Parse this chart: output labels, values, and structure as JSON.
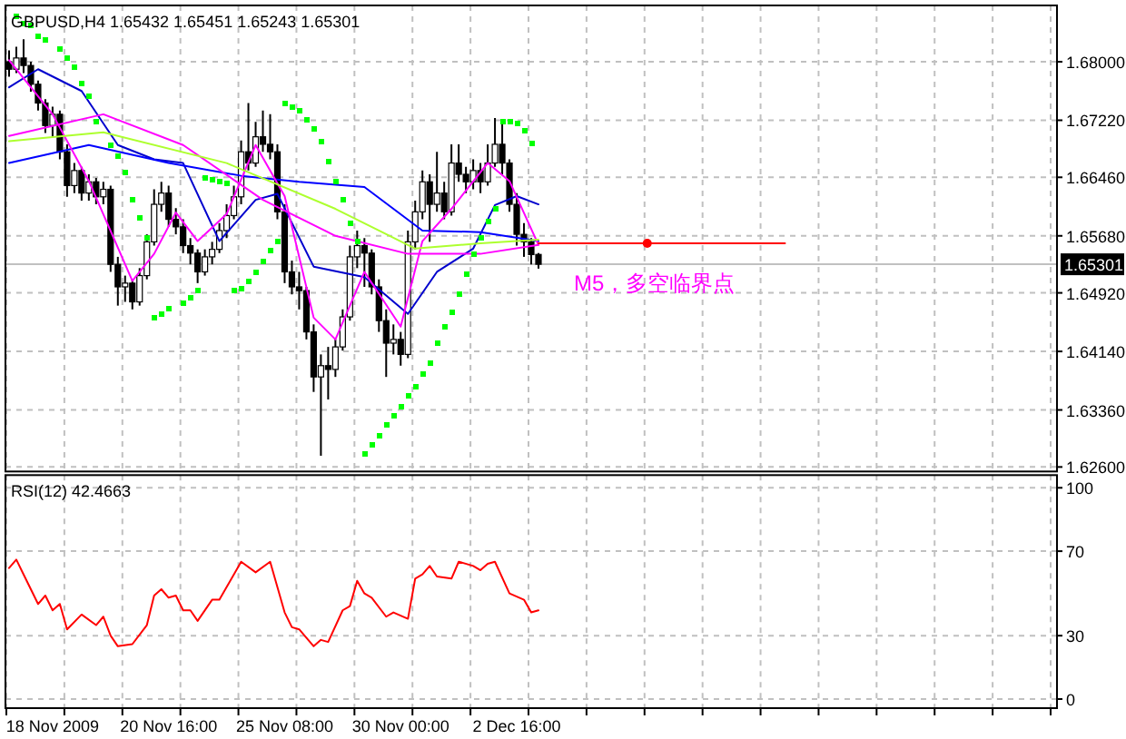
{
  "chart_data": [
    {
      "type": "candlestick",
      "title": "GBPUSD,H4  1.65432 1.65451 1.65243 1.65301",
      "categories": [
        null,
        null,
        null,
        null,
        null,
        null,
        null,
        null,
        null,
        null,
        null,
        null,
        null,
        null,
        null,
        null,
        null,
        null,
        null,
        null,
        null,
        null,
        null,
        null,
        null,
        null,
        null,
        null,
        null,
        null,
        null,
        null,
        null,
        null,
        null,
        null,
        null,
        null,
        null,
        null,
        null,
        null,
        null,
        null,
        null,
        null,
        null,
        null,
        null,
        null,
        null,
        null,
        null,
        null,
        null,
        null,
        null,
        null,
        null,
        null,
        null,
        null,
        null,
        null,
        null,
        null,
        null,
        null,
        null,
        null,
        null,
        null,
        null,
        null,
        null,
        null,
        null,
        null,
        null,
        null,
        null,
        null,
        null,
        null,
        null,
        null,
        null,
        null,
        null,
        null,
        null,
        null,
        null,
        null,
        null,
        null,
        null,
        null,
        null,
        null,
        null,
        null,
        null,
        null,
        null,
        null,
        null,
        null,
        null,
        null,
        null,
        null,
        null,
        null,
        null,
        null,
        null,
        null,
        null,
        null,
        null,
        null,
        null,
        null,
        null,
        null,
        null,
        null,
        null,
        null,
        null,
        null,
        null,
        null,
        null,
        null,
        null,
        null,
        null,
        null,
        null,
        null,
        null,
        null,
        null
      ],
      "ylim": [
        1.6254,
        1.6875
      ],
      "yticks": [
        {
          "value": 1.626,
          "label": "1.62600"
        },
        {
          "value": 1.6336,
          "label": "1.63360"
        },
        {
          "value": 1.6414,
          "label": "1.64140"
        },
        {
          "value": 1.6492,
          "label": "1.64920"
        },
        {
          "value": 1.6568,
          "label": "1.65680"
        },
        {
          "value": 1.6646,
          "label": "1.66460"
        },
        {
          "value": 1.6722,
          "label": "1.67220"
        },
        {
          "value": 1.68,
          "label": "1.68000"
        }
      ],
      "grid": true,
      "tick_labels": "y",
      "ohlc": [
        [
          1.68,
          1.6815,
          1.678,
          1.679
        ],
        [
          1.679,
          1.682,
          1.6785,
          1.6805
        ],
        [
          1.6805,
          1.683,
          1.6785,
          1.6795
        ],
        [
          1.6795,
          1.68,
          1.676,
          1.677
        ],
        [
          1.677,
          1.6775,
          1.6735,
          1.6745
        ],
        [
          1.6745,
          1.675,
          1.6705,
          1.6715
        ],
        [
          1.6715,
          1.674,
          1.67,
          1.673
        ],
        [
          1.673,
          1.6735,
          1.667,
          1.668
        ],
        [
          1.668,
          1.669,
          1.662,
          1.6635
        ],
        [
          1.6635,
          1.6665,
          1.6625,
          1.6655
        ],
        [
          1.6655,
          1.666,
          1.6615,
          1.6625
        ],
        [
          1.6625,
          1.665,
          1.6615,
          1.664
        ],
        [
          1.664,
          1.6645,
          1.661,
          1.662
        ],
        [
          1.662,
          1.664,
          1.661,
          1.663
        ],
        [
          1.663,
          1.6635,
          1.652,
          1.653
        ],
        [
          1.653,
          1.654,
          1.6475,
          1.65
        ],
        [
          1.65,
          1.6515,
          1.648,
          1.6505
        ],
        [
          1.6505,
          1.651,
          1.647,
          1.648
        ],
        [
          1.648,
          1.6525,
          1.6475,
          1.6515
        ],
        [
          1.6515,
          1.657,
          1.651,
          1.656
        ],
        [
          1.656,
          1.663,
          1.6555,
          1.661
        ],
        [
          1.661,
          1.664,
          1.66,
          1.6625
        ],
        [
          1.6625,
          1.6635,
          1.658,
          1.659
        ],
        [
          1.659,
          1.6605,
          1.657,
          1.658
        ],
        [
          1.658,
          1.659,
          1.6545,
          1.6555
        ],
        [
          1.6555,
          1.6565,
          1.653,
          1.6545
        ],
        [
          1.6545,
          1.655,
          1.6505,
          1.652
        ],
        [
          1.652,
          1.655,
          1.6515,
          1.654
        ],
        [
          1.654,
          1.656,
          1.653,
          1.655
        ],
        [
          1.655,
          1.6585,
          1.6545,
          1.6575
        ],
        [
          1.6575,
          1.661,
          1.6565,
          1.6595
        ],
        [
          1.6595,
          1.6635,
          1.659,
          1.662
        ],
        [
          1.662,
          1.6695,
          1.661,
          1.668
        ],
        [
          1.668,
          1.6745,
          1.6655,
          1.6665
        ],
        [
          1.6665,
          1.672,
          1.666,
          1.67
        ],
        [
          1.67,
          1.6735,
          1.668,
          1.669
        ],
        [
          1.669,
          1.673,
          1.667,
          1.668
        ],
        [
          1.668,
          1.669,
          1.659,
          1.66
        ],
        [
          1.66,
          1.661,
          1.6505,
          1.652
        ],
        [
          1.652,
          1.6535,
          1.649,
          1.65
        ],
        [
          1.65,
          1.652,
          1.647,
          1.6495
        ],
        [
          1.6495,
          1.65,
          1.643,
          1.644
        ],
        [
          1.644,
          1.645,
          1.636,
          1.638
        ],
        [
          1.638,
          1.641,
          1.6275,
          1.6395
        ],
        [
          1.6395,
          1.642,
          1.635,
          1.639
        ],
        [
          1.639,
          1.643,
          1.638,
          1.642
        ],
        [
          1.642,
          1.647,
          1.6415,
          1.646
        ],
        [
          1.646,
          1.6555,
          1.6455,
          1.654
        ],
        [
          1.654,
          1.6575,
          1.6525,
          1.6555
        ],
        [
          1.6555,
          1.6565,
          1.65,
          1.6545
        ],
        [
          1.6545,
          1.655,
          1.649,
          1.65
        ],
        [
          1.65,
          1.651,
          1.644,
          1.6455
        ],
        [
          1.6455,
          1.647,
          1.638,
          1.6425
        ],
        [
          1.6425,
          1.645,
          1.641,
          1.643
        ],
        [
          1.643,
          1.644,
          1.6395,
          1.641
        ],
        [
          1.641,
          1.6575,
          1.6405,
          1.656
        ],
        [
          1.656,
          1.6615,
          1.655,
          1.66
        ],
        [
          1.66,
          1.6655,
          1.659,
          1.664
        ],
        [
          1.664,
          1.665,
          1.656,
          1.661
        ],
        [
          1.661,
          1.668,
          1.66,
          1.6625
        ],
        [
          1.6625,
          1.664,
          1.659,
          1.66
        ],
        [
          1.66,
          1.669,
          1.6595,
          1.6665
        ],
        [
          1.6665,
          1.669,
          1.664,
          1.665
        ],
        [
          1.665,
          1.666,
          1.6625,
          1.664
        ],
        [
          1.664,
          1.667,
          1.663,
          1.6655
        ],
        [
          1.6655,
          1.6665,
          1.6625,
          1.664
        ],
        [
          1.664,
          1.669,
          1.6635,
          1.6665
        ],
        [
          1.6665,
          1.6725,
          1.666,
          1.669
        ],
        [
          1.669,
          1.672,
          1.665,
          1.6665
        ],
        [
          1.6665,
          1.667,
          1.66,
          1.661
        ],
        [
          1.661,
          1.6625,
          1.6555,
          1.657
        ],
        [
          1.657,
          1.6585,
          1.654,
          1.656
        ],
        [
          1.656,
          1.6565,
          1.653,
          1.6543
        ],
        [
          1.65432,
          1.65451,
          1.65243,
          1.65301
        ],
        null,
        null,
        null,
        null,
        null,
        null,
        null,
        null,
        null,
        null,
        null,
        null,
        null,
        null,
        null,
        null,
        null,
        null,
        null,
        null,
        null,
        null,
        null,
        null,
        null,
        null,
        null,
        null,
        null,
        null,
        null,
        null,
        null,
        null,
        null,
        null,
        null,
        null,
        null,
        null,
        null,
        null,
        null,
        null,
        null,
        null,
        null,
        null,
        null,
        null,
        null,
        null,
        null,
        null,
        null,
        null,
        null,
        null,
        null,
        null,
        null,
        null,
        null,
        null,
        null,
        null,
        null,
        null,
        null,
        null,
        null
      ],
      "series": [
        {
          "type": "line",
          "color": "#0000cd",
          "values": [
            1.6766,
            null,
            null,
            null,
            1.679,
            null,
            null,
            null,
            null,
            null,
            1.6761,
            null,
            null,
            null,
            null,
            1.6689,
            null,
            null,
            null,
            null,
            1.667,
            null,
            null,
            null,
            1.6665,
            null,
            null,
            null,
            null,
            1.6561,
            null,
            null,
            null,
            null,
            1.6616,
            null,
            null,
            1.6624,
            null,
            null,
            null,
            null,
            1.6527,
            null,
            null,
            null,
            null,
            null,
            null,
            1.6513,
            null,
            null,
            null,
            null,
            null,
            1.6464,
            null,
            null,
            null,
            1.652,
            null,
            null,
            null,
            null,
            1.6551,
            null,
            null,
            1.6609,
            null,
            null,
            1.6621,
            null,
            null,
            1.661,
            null,
            null,
            null,
            null,
            null,
            null,
            null,
            null,
            null,
            null,
            null,
            null,
            null,
            null,
            null,
            null,
            null,
            null,
            null,
            null,
            null,
            null,
            null,
            null,
            null,
            null,
            null,
            null,
            null,
            null,
            null,
            null,
            null,
            null,
            null,
            null,
            null,
            null,
            null,
            null,
            null,
            null,
            null,
            null,
            null,
            null,
            null,
            null,
            null,
            null,
            null,
            null,
            null,
            null,
            null,
            null,
            null,
            null,
            null,
            null,
            null,
            null,
            null,
            null,
            null,
            null,
            null,
            null,
            null,
            null,
            null
          ]
        },
        {
          "type": "line",
          "color": "#0000ff",
          "values": [
            1.6665,
            null,
            null,
            null,
            null,
            null,
            null,
            null,
            null,
            null,
            null,
            1.6689,
            null,
            null,
            null,
            null,
            null,
            null,
            null,
            null,
            null,
            null,
            1.6665,
            null,
            null,
            null,
            null,
            null,
            null,
            null,
            null,
            null,
            1.6648,
            null,
            null,
            null,
            null,
            null,
            null,
            null,
            1.664,
            null,
            null,
            null,
            null,
            null,
            null,
            null,
            null,
            1.6633,
            null,
            null,
            null,
            null,
            null,
            null,
            null,
            1.6575,
            null,
            null,
            null,
            null,
            null,
            null,
            null,
            1.6573,
            null,
            null,
            null,
            null,
            null,
            null,
            null,
            1.6561,
            null,
            null,
            null,
            null,
            null,
            null,
            null,
            null,
            null,
            null,
            null,
            null,
            null,
            null,
            null,
            null,
            null,
            null,
            null,
            null,
            null,
            null,
            null,
            null,
            null,
            null,
            null,
            null,
            null,
            null,
            null,
            null,
            null,
            null,
            null,
            null,
            null,
            null,
            null,
            null,
            null,
            null,
            null,
            null,
            null,
            null,
            null,
            null,
            null,
            null,
            null,
            null,
            null,
            null,
            null,
            null,
            null,
            null,
            null,
            null,
            null,
            null,
            null,
            null,
            null,
            null,
            null,
            null,
            null,
            null,
            null
          ]
        },
        {
          "type": "line",
          "color": "#ff00ff",
          "values": [
            1.6802,
            null,
            null,
            null,
            null,
            null,
            1.673,
            null,
            null,
            null,
            null,
            1.6641,
            null,
            null,
            null,
            null,
            null,
            1.6508,
            null,
            null,
            1.6544,
            null,
            null,
            1.6599,
            null,
            null,
            1.6561,
            null,
            null,
            null,
            1.6597,
            null,
            null,
            null,
            1.6689,
            null,
            null,
            null,
            1.6621,
            null,
            null,
            null,
            1.6459,
            null,
            null,
            1.643,
            null,
            null,
            null,
            1.652,
            null,
            null,
            null,
            null,
            1.6447,
            null,
            null,
            1.6561,
            null,
            null,
            null,
            1.6604,
            null,
            null,
            null,
            null,
            1.6665,
            null,
            null,
            1.6641,
            null,
            null,
            null,
            1.6556,
            null,
            null,
            null,
            null,
            null,
            null,
            null,
            null,
            null,
            null,
            null,
            null,
            null,
            null,
            null,
            null,
            null,
            null,
            null,
            null,
            null,
            null,
            null,
            null,
            null,
            null,
            null,
            null,
            null,
            null,
            null,
            null,
            null,
            null,
            null,
            null,
            null,
            null,
            null,
            null,
            null,
            null,
            null,
            null,
            null,
            null,
            null,
            null,
            null,
            null,
            null,
            null,
            null,
            null,
            null,
            null,
            null,
            null,
            null,
            null,
            null,
            null,
            null,
            null,
            null,
            null,
            null,
            null,
            null,
            null,
            null
          ]
        },
        {
          "type": "line",
          "color": "#ff00ff",
          "values": [
            1.6701,
            null,
            null,
            null,
            null,
            null,
            null,
            null,
            null,
            null,
            null,
            null,
            null,
            1.673,
            null,
            null,
            null,
            null,
            null,
            null,
            null,
            null,
            null,
            null,
            1.6689,
            null,
            null,
            null,
            null,
            null,
            null,
            null,
            null,
            null,
            null,
            1.6616,
            null,
            null,
            null,
            null,
            null,
            null,
            null,
            null,
            null,
            1.6568,
            null,
            null,
            null,
            null,
            null,
            null,
            null,
            null,
            null,
            1.6544,
            null,
            null,
            null,
            null,
            null,
            null,
            null,
            null,
            null,
            1.6544,
            null,
            null,
            null,
            null,
            null,
            null,
            null,
            1.6556,
            null,
            null,
            null,
            null,
            null,
            null,
            null,
            null,
            null,
            null,
            null,
            null,
            null,
            null,
            null,
            null,
            null,
            null,
            null,
            null,
            null,
            null,
            null,
            null,
            null,
            null,
            null,
            null,
            null,
            null,
            null,
            null,
            null,
            null,
            null,
            null,
            null,
            null,
            null,
            null,
            null,
            null,
            null,
            null,
            null,
            null,
            null,
            null,
            null,
            null,
            null,
            null,
            null,
            null,
            null,
            null,
            null,
            null,
            null,
            null,
            null,
            null,
            null,
            null,
            null,
            null,
            null,
            null,
            null,
            null,
            null
          ]
        },
        {
          "type": "line",
          "color": "#adff2f",
          "values": [
            1.6694,
            null,
            null,
            null,
            null,
            null,
            null,
            null,
            null,
            null,
            null,
            null,
            null,
            1.6706,
            null,
            null,
            null,
            null,
            null,
            null,
            null,
            null,
            null,
            null,
            null,
            null,
            null,
            null,
            null,
            null,
            1.6665,
            null,
            null,
            null,
            null,
            null,
            null,
            null,
            null,
            null,
            null,
            null,
            null,
            null,
            null,
            1.6604,
            null,
            null,
            null,
            null,
            null,
            null,
            null,
            null,
            null,
            null,
            1.6551,
            null,
            null,
            null,
            null,
            null,
            null,
            null,
            null,
            1.6558,
            null,
            null,
            null,
            null,
            null,
            null,
            null,
            1.6563,
            null,
            null,
            null,
            null,
            null,
            null,
            null,
            null,
            null,
            null,
            null,
            null,
            null,
            null,
            null,
            null,
            null,
            null,
            null,
            null,
            null,
            null,
            null,
            null,
            null,
            null,
            null,
            null,
            null,
            null,
            null,
            null,
            null,
            null,
            null,
            null,
            null,
            null,
            null,
            null,
            null,
            null,
            null,
            null,
            null,
            null,
            null,
            null,
            null,
            null,
            null,
            null,
            null,
            null,
            null,
            null,
            null,
            null,
            null,
            null,
            null,
            null,
            null,
            null,
            null,
            null,
            null,
            null,
            null,
            null,
            null
          ]
        },
        {
          "type": "scatter",
          "color": "#00ff00",
          "marker": "square",
          "values": [
            null,
            1.686,
            1.685,
            1.6848,
            1.6835,
            1.6828,
            null,
            1.6818,
            1.6806,
            1.6792,
            1.6771,
            1.6753,
            1.6721,
            null,
            1.6689,
            1.6674,
            1.6653,
            1.6616,
            1.6591,
            1.6566,
            1.6459,
            1.6464,
            1.647,
            null,
            1.6477,
            1.6486,
            1.6494,
            1.6645,
            1.6643,
            1.6641,
            1.6639,
            1.6496,
            1.6497,
            1.6507,
            1.652,
            1.6534,
            1.6548,
            1.656,
            1.6745,
            1.6739,
            1.6735,
            1.6723,
            1.6711,
            1.6693,
            1.6666,
            1.6641,
            1.6616,
            1.6584,
            1.656,
            1.6278,
            1.629,
            1.6302,
            1.6315,
            1.6327,
            1.6341,
            1.6356,
            1.6367,
            1.6385,
            1.6399,
            1.6425,
            1.6447,
            1.6467,
            1.649,
            1.6518,
            1.6544,
            1.6566,
            1.6586,
            1.6604,
            1.6721,
            1.6721,
            1.6717,
            1.6707,
            1.6691,
            null,
            null,
            null,
            null,
            null,
            null,
            null,
            null,
            null,
            null,
            null,
            null,
            null,
            null,
            null,
            null,
            null,
            null,
            null,
            null,
            null,
            null,
            null,
            null,
            null,
            null,
            null,
            null,
            null,
            null,
            null,
            null,
            null,
            null,
            null,
            null,
            null,
            null,
            null,
            null,
            null,
            null,
            null,
            null,
            null,
            null,
            null,
            null,
            null,
            null,
            null,
            null,
            null,
            null,
            null,
            null,
            null,
            null,
            null,
            null,
            null,
            null,
            null,
            null,
            null,
            null,
            null,
            null,
            null,
            null,
            null,
            null
          ]
        },
        {
          "type": "line",
          "color": "#ff0000",
          "values": [
            null,
            null,
            null,
            null,
            null,
            null,
            null,
            null,
            null,
            null,
            null,
            null,
            null,
            null,
            null,
            null,
            null,
            null,
            null,
            null,
            null,
            null,
            null,
            null,
            null,
            null,
            null,
            null,
            null,
            null,
            null,
            null,
            null,
            null,
            null,
            null,
            null,
            null,
            null,
            null,
            null,
            null,
            null,
            null,
            null,
            null,
            null,
            null,
            null,
            null,
            null,
            null,
            null,
            null,
            null,
            null,
            null,
            null,
            null,
            null,
            null,
            null,
            null,
            null,
            null,
            null,
            null,
            null,
            null,
            null,
            null,
            null,
            null,
            1.6558,
            null,
            null,
            null,
            null,
            null,
            null,
            null,
            null,
            null,
            null,
            null,
            null,
            null,
            null,
            null,
            null,
            null,
            null,
            null,
            null,
            null,
            null,
            null,
            null,
            null,
            null,
            null,
            null,
            null,
            null,
            null,
            null,
            null,
            1.6558,
            null,
            null,
            null,
            null,
            null,
            null,
            null,
            null,
            null,
            null,
            null,
            null,
            null,
            null,
            null,
            null,
            null,
            null,
            null,
            null,
            null,
            null,
            null,
            null,
            null,
            null,
            null,
            null,
            null,
            null,
            null,
            null,
            null,
            null,
            null,
            null,
            null
          ]
        },
        {
          "type": "scatter",
          "color": "#ff0000",
          "marker": "circle",
          "values": [
            null,
            null,
            null,
            null,
            null,
            null,
            null,
            null,
            null,
            null,
            null,
            null,
            null,
            null,
            null,
            null,
            null,
            null,
            null,
            null,
            null,
            null,
            null,
            null,
            null,
            null,
            null,
            null,
            null,
            null,
            null,
            null,
            null,
            null,
            null,
            null,
            null,
            null,
            null,
            null,
            null,
            null,
            null,
            null,
            null,
            null,
            null,
            null,
            null,
            null,
            null,
            null,
            null,
            null,
            null,
            null,
            null,
            null,
            null,
            null,
            null,
            null,
            null,
            null,
            null,
            null,
            null,
            null,
            null,
            null,
            null,
            null,
            null,
            null,
            null,
            null,
            null,
            null,
            null,
            null,
            null,
            null,
            null,
            null,
            null,
            null,
            null,
            null,
            1.6558,
            null,
            null,
            null,
            null,
            null,
            null,
            null,
            null,
            null,
            null,
            null,
            null,
            null,
            null,
            null,
            null,
            null,
            null,
            null,
            null,
            null,
            null,
            null,
            null,
            null,
            null,
            null,
            null,
            null,
            null,
            null,
            null,
            null,
            null,
            null,
            null,
            null,
            null,
            null,
            null,
            null,
            null,
            null,
            null,
            null,
            null,
            null,
            null,
            null,
            null,
            null,
            null,
            null,
            null,
            null,
            null
          ]
        }
      ],
      "ref_lines": [
        {
          "axis": "y",
          "value": 1.65301,
          "label": "1.65301",
          "color": "#c0c0c0"
        }
      ],
      "annotations": [
        "M5，多空临界点"
      ]
    },
    {
      "type": "line",
      "title": "RSI(12) 42.4663",
      "categories": [
        null,
        null,
        null,
        null,
        null,
        null,
        "18 Nov 2009",
        null,
        null,
        null,
        null,
        null,
        null,
        null,
        null,
        null,
        null,
        null,
        null,
        null,
        null,
        null,
        "20 Nov 16:00",
        null,
        null,
        null,
        null,
        null,
        null,
        null,
        null,
        null,
        null,
        null,
        null,
        null,
        null,
        null,
        "25 Nov 08:00",
        null,
        null,
        null,
        null,
        null,
        null,
        null,
        null,
        null,
        null,
        null,
        null,
        null,
        null,
        null,
        "30 Nov 00:00",
        null,
        null,
        null,
        null,
        null,
        null,
        null,
        null,
        null,
        null,
        null,
        null,
        null,
        null,
        null,
        "2 Dec 16:00",
        null,
        null,
        null,
        null,
        null,
        null,
        null,
        null,
        null,
        null,
        null,
        null,
        null,
        null,
        null,
        null,
        null,
        null,
        null,
        null,
        null,
        null,
        null,
        null,
        null,
        null,
        null,
        null,
        null,
        null,
        null,
        null,
        null,
        null,
        null,
        null,
        null,
        null,
        null,
        null,
        null,
        null,
        null,
        null,
        null,
        null,
        null,
        null,
        null,
        null,
        null,
        null,
        null,
        null,
        null,
        null,
        null,
        null,
        null,
        null,
        null,
        null,
        null,
        null,
        null,
        null,
        null,
        null,
        null,
        null,
        null,
        null,
        null,
        null
      ],
      "ylim": [
        -4.3,
        106
      ],
      "yticks": [
        0,
        30,
        70,
        100
      ],
      "grid": true,
      "series": [
        {
          "color": "#ff0000",
          "values": [
            62,
            66,
            59,
            null,
            45,
            49,
            42,
            45,
            33,
            null,
            40,
            null,
            35,
            39,
            30,
            25,
            null,
            26,
            null,
            35,
            49,
            52,
            48,
            49,
            42,
            42,
            37,
            null,
            47,
            47,
            null,
            null,
            65,
            null,
            60,
            null,
            65,
            null,
            41,
            34,
            33,
            null,
            25,
            28,
            27,
            null,
            42,
            44,
            56,
            50,
            48,
            null,
            39,
            41,
            null,
            38,
            57,
            59,
            63,
            58,
            null,
            57,
            65,
            null,
            63,
            61,
            64,
            65,
            null,
            50,
            null,
            47,
            41,
            42,
            null,
            null,
            null,
            null,
            null,
            null,
            null,
            null,
            null,
            null,
            null,
            null,
            null,
            null,
            null,
            null,
            null,
            null,
            null,
            null,
            null,
            null,
            null,
            null,
            null,
            null,
            null,
            null,
            null,
            null,
            null,
            null,
            null,
            null,
            null,
            null,
            null,
            null,
            null,
            null,
            null,
            null,
            null,
            null,
            null,
            null,
            null,
            null,
            null,
            null,
            null,
            null,
            null,
            null,
            null,
            null,
            null,
            null,
            null,
            null,
            null,
            null,
            null,
            null,
            null,
            null,
            null,
            null,
            null,
            null,
            null
          ]
        }
      ]
    }
  ]
}
